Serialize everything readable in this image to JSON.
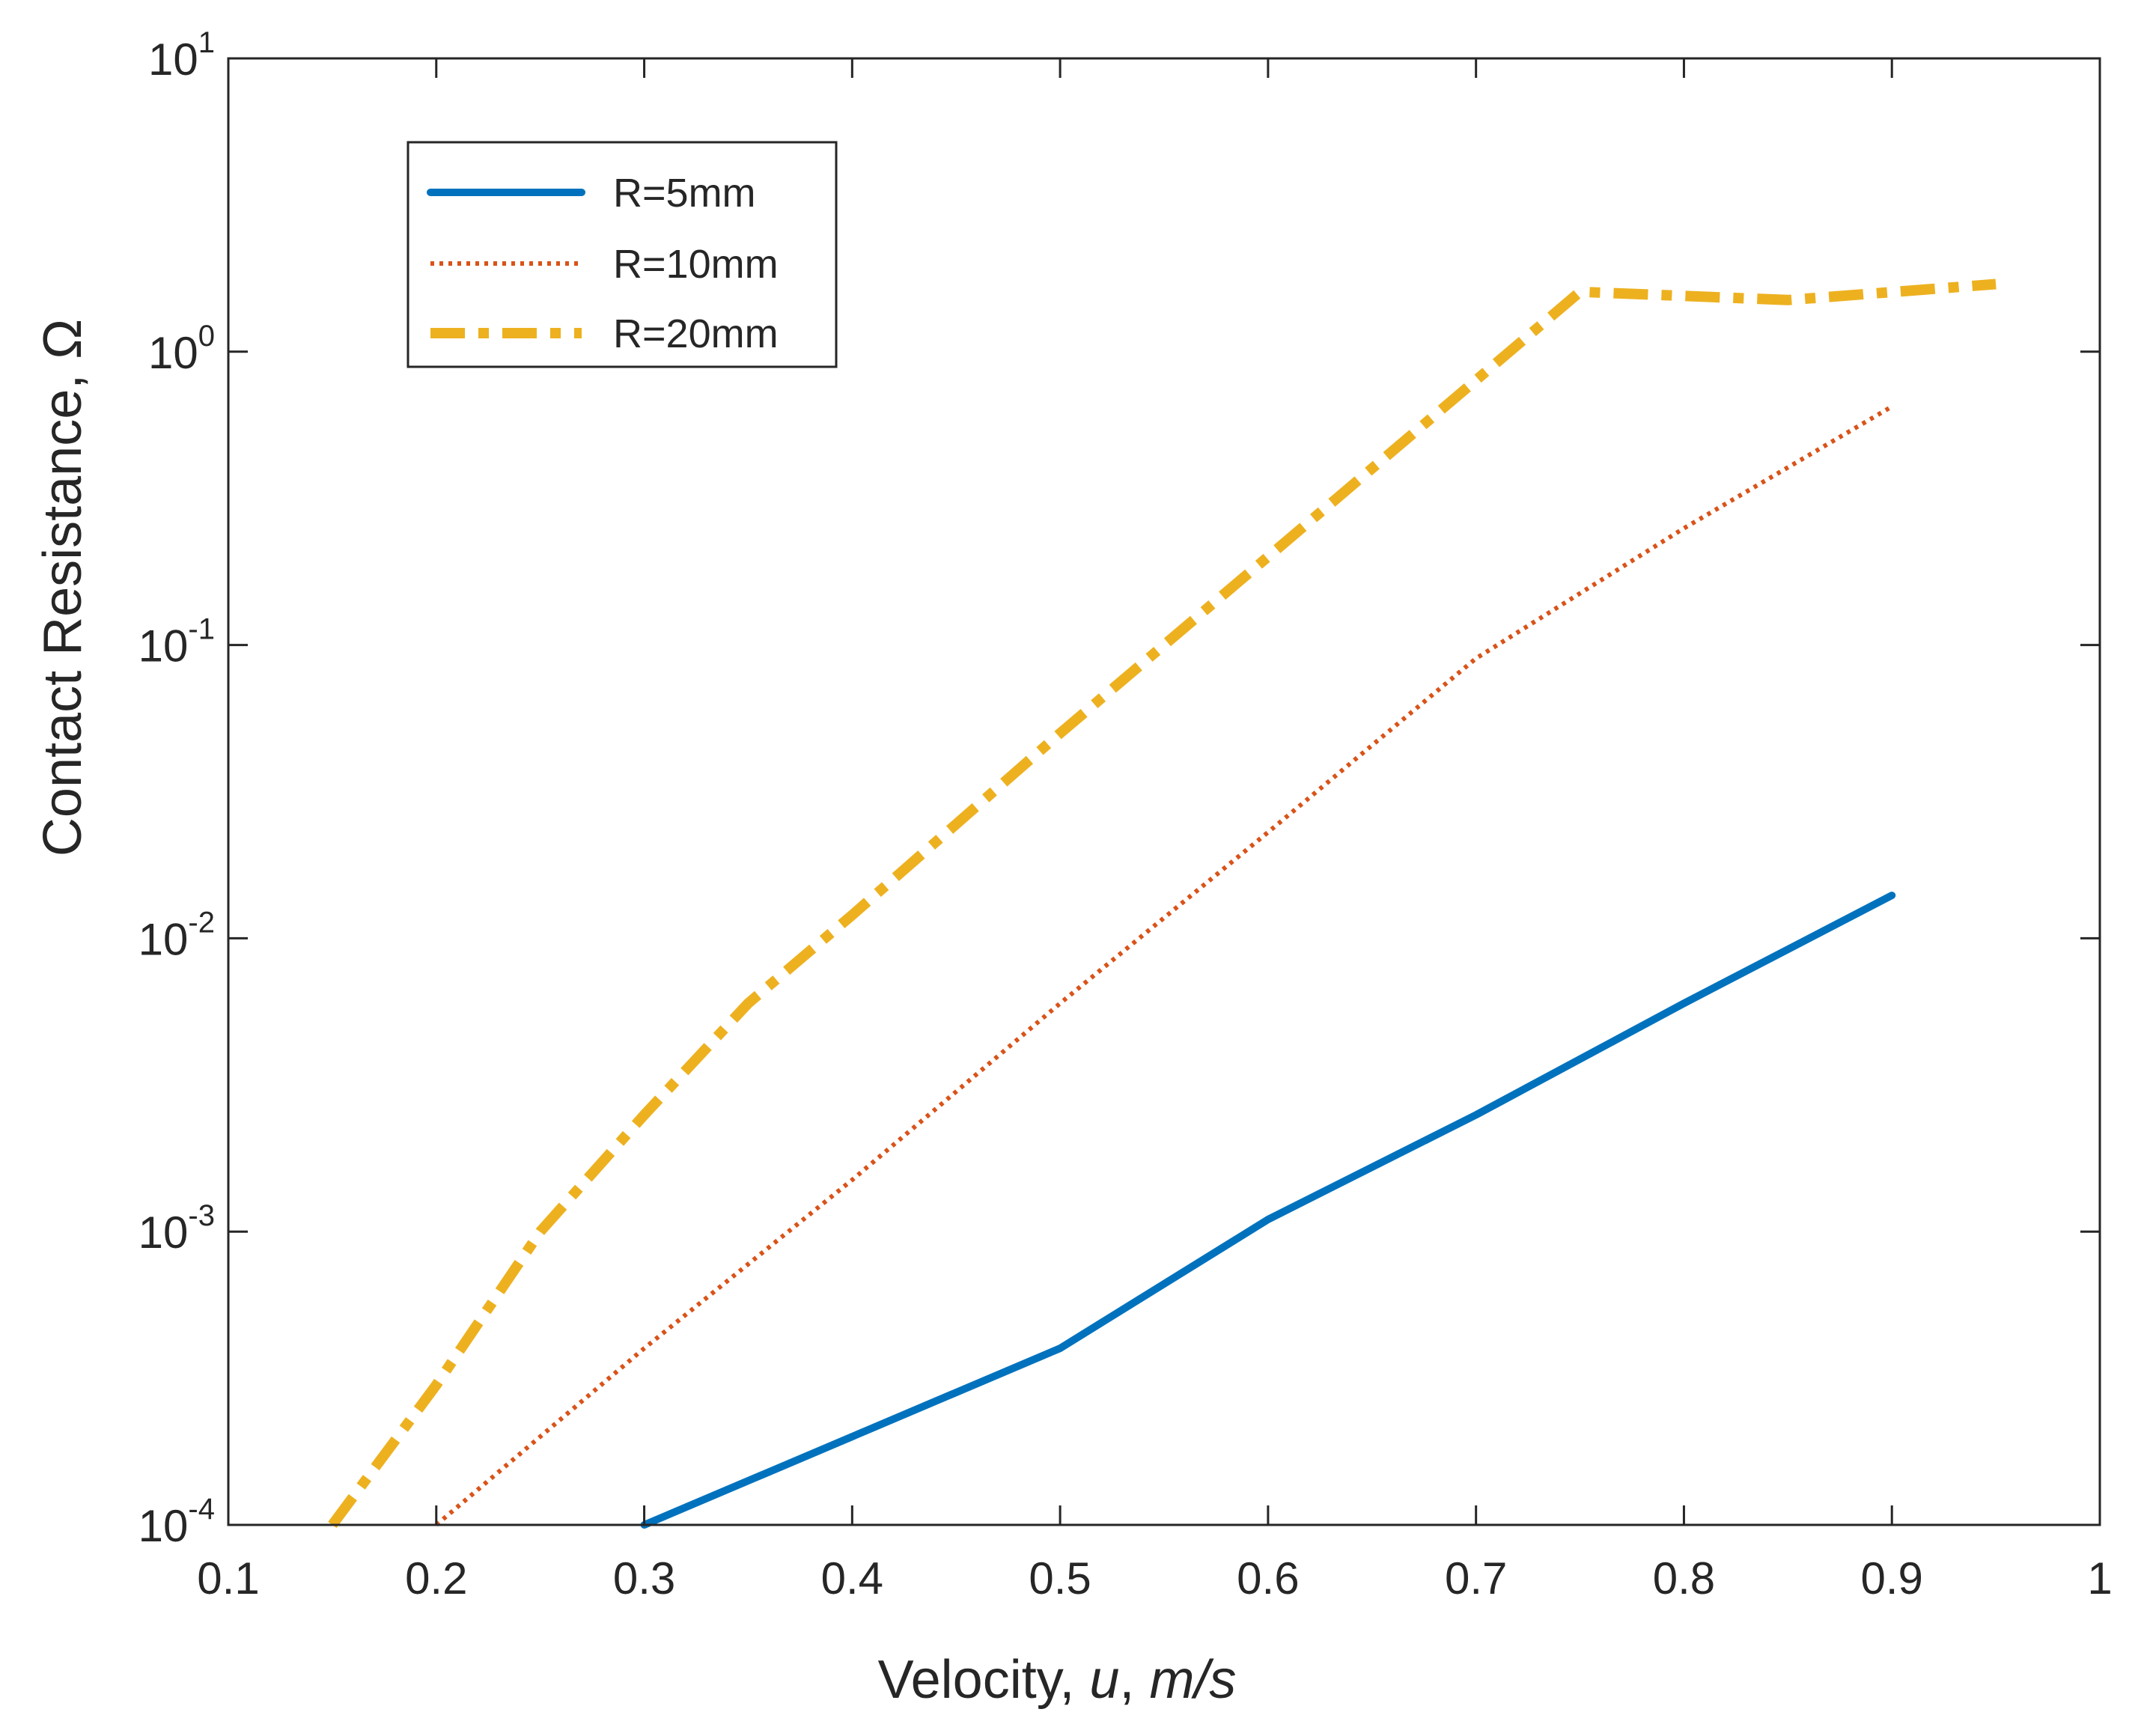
{
  "chart_data": {
    "type": "line",
    "title": "",
    "xlabel": "Velocity,  u, m/s",
    "xlabel_parts": {
      "prefix": "Velocity,  ",
      "var": "u",
      "mid": ", ",
      "unit": "m/s"
    },
    "ylabel": "Contact Resistance, Ω",
    "xlim": [
      0.1,
      1.0
    ],
    "ylim": [
      0.0001,
      10
    ],
    "yscale": "log",
    "grid": false,
    "legend_position": "top-left",
    "x_ticks": [
      "0.1",
      "0.2",
      "0.3",
      "0.4",
      "0.5",
      "0.6",
      "0.7",
      "0.8",
      "0.9",
      "1"
    ],
    "y_ticks": [
      {
        "base": "10",
        "exp": "-4"
      },
      {
        "base": "10",
        "exp": "-3"
      },
      {
        "base": "10",
        "exp": "-2"
      },
      {
        "base": "10",
        "exp": "-1"
      },
      {
        "base": "10",
        "exp": "0"
      },
      {
        "base": "10",
        "exp": "1"
      }
    ],
    "series": [
      {
        "name": "R=5mm",
        "color": "#0072BD",
        "style": "solid",
        "x": [
          0.3,
          0.4,
          0.5,
          0.6,
          0.7,
          0.8,
          0.9
        ],
        "y": [
          0.0001,
          0.0002,
          0.0004,
          0.0011,
          0.0025,
          0.006,
          0.014
        ]
      },
      {
        "name": "R=10mm",
        "color": "#D95319",
        "style": "dotted",
        "x": [
          0.2,
          0.3,
          0.4,
          0.5,
          0.6,
          0.7,
          0.8,
          0.9
        ],
        "y": [
          0.0001,
          0.0004,
          0.0015,
          0.006,
          0.023,
          0.09,
          0.25,
          0.65
        ]
      },
      {
        "name": "R=20mm",
        "color": "#EDB120",
        "style": "dashdot",
        "x": [
          0.15,
          0.2,
          0.25,
          0.3,
          0.35,
          0.4,
          0.5,
          0.6,
          0.7,
          0.75,
          0.85,
          0.95
        ],
        "y": [
          0.0001,
          0.0003,
          0.001,
          0.0025,
          0.006,
          0.012,
          0.05,
          0.2,
          0.8,
          1.6,
          1.5,
          1.7
        ]
      }
    ]
  }
}
